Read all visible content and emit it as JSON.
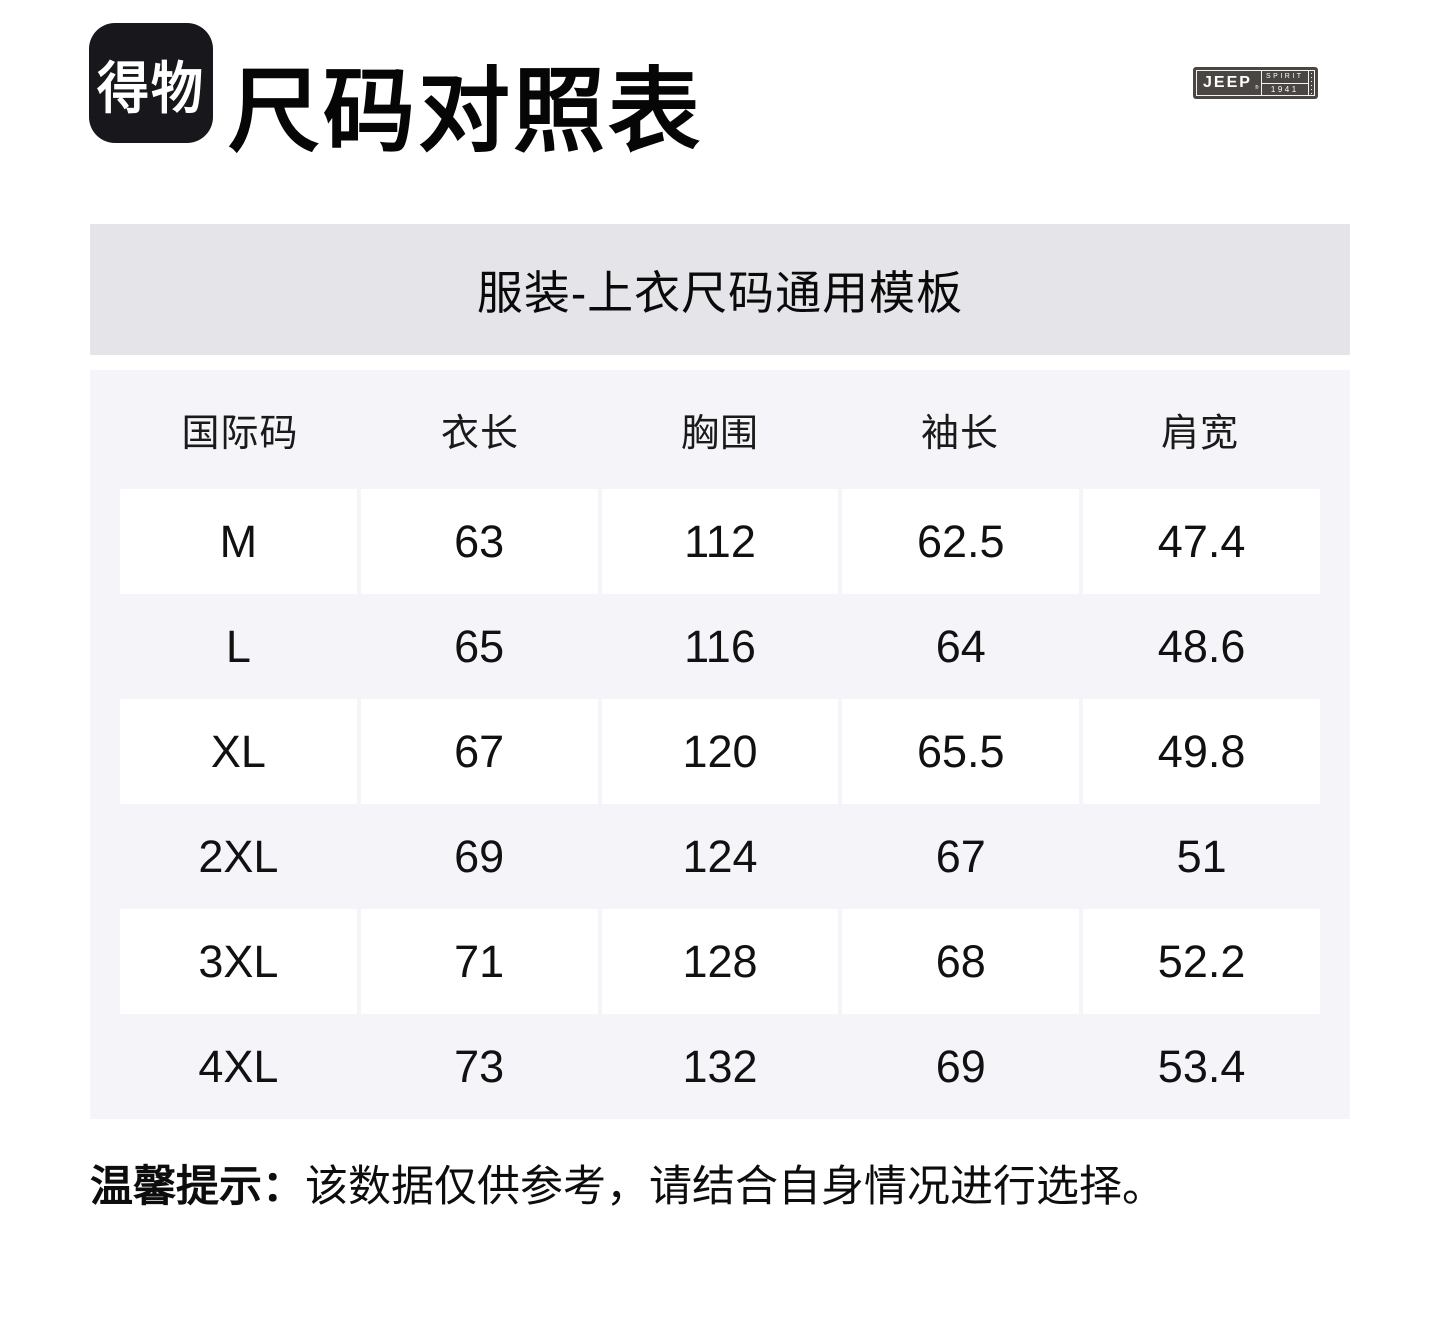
{
  "brand": {
    "logo_text": "得物",
    "jeep_badge": {
      "name": "JEEP",
      "registered": "®",
      "spirit": "SPIRIT",
      "year": "1941"
    }
  },
  "header": {
    "title": "尺码对照表"
  },
  "banner": {
    "title": "服装-上衣尺码通用模板"
  },
  "size_table": {
    "columns": [
      "国际码",
      "衣长",
      "胸围",
      "袖长",
      "肩宽"
    ],
    "rows": [
      [
        "M",
        "63",
        "112",
        "62.5",
        "47.4"
      ],
      [
        "L",
        "65",
        "116",
        "64",
        "48.6"
      ],
      [
        "XL",
        "67",
        "120",
        "65.5",
        "49.8"
      ],
      [
        "2XL",
        "69",
        "124",
        "67",
        "51"
      ],
      [
        "3XL",
        "71",
        "128",
        "68",
        "52.2"
      ],
      [
        "4XL",
        "73",
        "132",
        "69",
        "53.4"
      ]
    ]
  },
  "note": {
    "label": "温馨提示：",
    "text": "该数据仅供参考，请结合自身情况进行选择。"
  },
  "colors": {
    "logo_bg": "#17171c",
    "badge_bg": "#4a4643",
    "banner_bg": "#e5e4e9",
    "table_bg": "#f5f4f8",
    "cell_bg": "#ffffff",
    "text": "#111111"
  }
}
